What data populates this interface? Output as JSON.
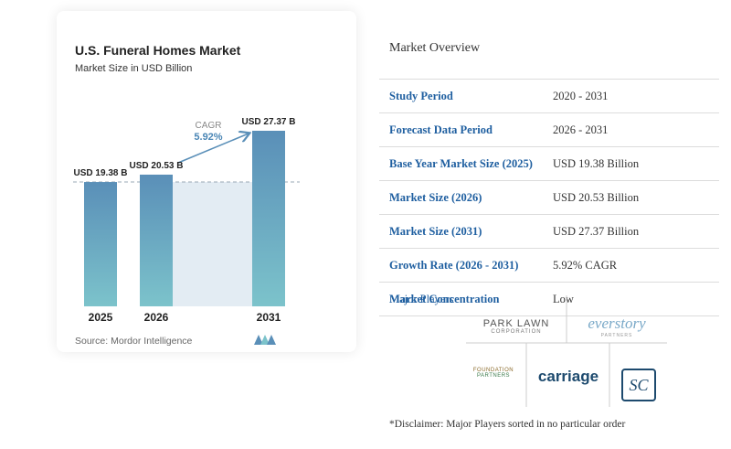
{
  "chart_data": {
    "type": "bar",
    "title": "U.S. Funeral Homes Market",
    "subtitle": "Market Size in USD Billion",
    "categories": [
      "2025",
      "2026",
      "2031"
    ],
    "values": [
      19.38,
      20.53,
      27.37
    ],
    "value_labels": [
      "USD 19.38 B",
      "USD 20.53 B",
      "USD 27.37 B"
    ],
    "annotation": {
      "label": "CAGR",
      "value_label": "5.92%"
    },
    "source": "Source: Mordor Intelligence"
  },
  "overview": {
    "title": "Market Overview",
    "rows": [
      [
        "Study Period",
        "2020 - 2031"
      ],
      [
        "Forecast Data Period",
        "2026 - 2031"
      ],
      [
        "Base Year Market Size (2025)",
        "USD 19.38 Billion"
      ],
      [
        "Market Size (2026)",
        "USD 20.53 Billion"
      ],
      [
        "Market Size (2031)",
        "USD 27.37 Billion"
      ],
      [
        "Growth Rate (2026 - 2031)",
        "5.92% CAGR"
      ],
      [
        "Market Concentration",
        "Low"
      ]
    ]
  },
  "players": {
    "title": "Major Players",
    "logos": [
      {
        "name": "PARK LAWN",
        "sub": "CORPORATION"
      },
      {
        "name": "everstory",
        "sub": "PARTNERS"
      },
      {
        "name": "FOUNDATION",
        "sub": "PARTNERS"
      },
      {
        "name": "carriage"
      },
      {
        "name": "SC"
      }
    ]
  },
  "disclaimer": "*Disclaimer: Major Players sorted in no particular order"
}
